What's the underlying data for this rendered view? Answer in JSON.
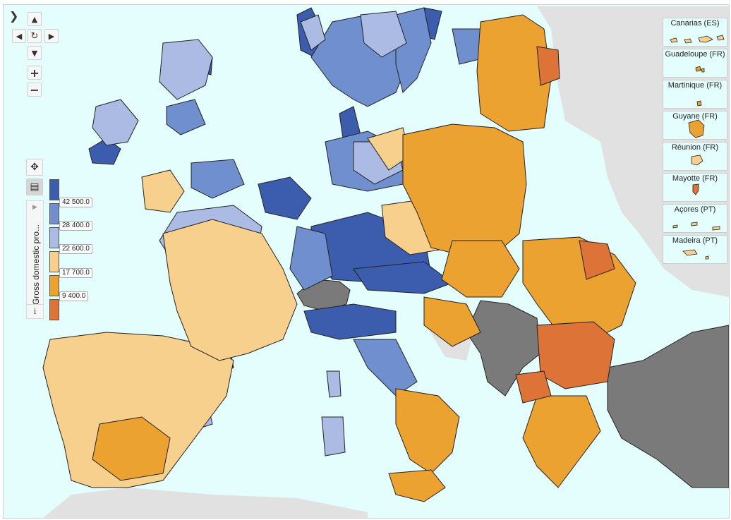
{
  "colors": {
    "sea": "#e4fdfd",
    "non_eu_land": "#e1e1e1",
    "no_data": "#7a7a7a",
    "class_1": "#3c5cad",
    "class_2": "#6f8fcf",
    "class_3": "#acbbe4",
    "class_4": "#f6d08c",
    "class_5": "#eba230",
    "class_6": "#dd7336"
  },
  "toolbar": {
    "collapse_icon": "chevron-right-icon",
    "pan_up_icon": "triangle-up-icon",
    "pan_left_icon": "triangle-left-icon",
    "reset_icon": "rotate-icon",
    "pan_right_icon": "triangle-right-icon",
    "pan_down_icon": "triangle-down-icon",
    "zoom_in": "+",
    "zoom_out": "−",
    "move_icon": "move-arrows-icon",
    "legend_toggle_icon": "legend-list-icon"
  },
  "legend": {
    "title": "Gross domestic pro...",
    "info": "i",
    "breaks": [
      "42 500.0",
      "28 400.0",
      "22 600.0",
      "17 700.0",
      "9 400.0"
    ]
  },
  "insets": [
    {
      "name": "Canarias (ES)"
    },
    {
      "name": "Guadeloupe (FR)"
    },
    {
      "name": "Martinique (FR)"
    },
    {
      "name": "Guyane (FR)"
    },
    {
      "name": "Réunion (FR)"
    },
    {
      "name": "Mayotte (FR)"
    },
    {
      "name": "Açores (PT)"
    },
    {
      "name": "Madeira (PT)"
    }
  ]
}
